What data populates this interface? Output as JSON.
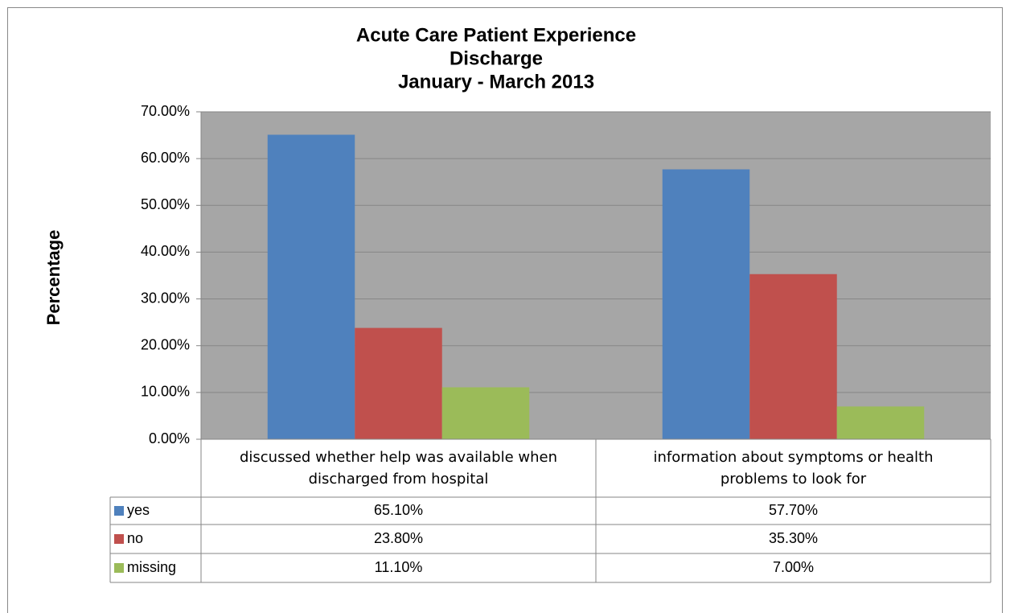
{
  "chart_data": {
    "type": "bar",
    "title": [
      "Acute Care Patient Experience",
      "Discharge",
      "January - March 2013"
    ],
    "y_label": "Percentage",
    "categories": [
      "discussed whether help was available when discharged from hospital",
      "information about symptoms or health problems to look for"
    ],
    "series": [
      {
        "name": "yes",
        "color": "#4f81bd",
        "values": [
          65.1,
          57.7
        ],
        "value_labels": [
          "65.10%",
          "57.70%"
        ]
      },
      {
        "name": "no",
        "color": "#c0504d",
        "values": [
          23.8,
          35.3
        ],
        "value_labels": [
          "23.80%",
          "35.30%"
        ]
      },
      {
        "name": "missing",
        "color": "#9bbb59",
        "values": [
          11.1,
          7.0
        ],
        "value_labels": [
          "11.10%",
          "7.00%"
        ]
      }
    ],
    "ylim": [
      0,
      70
    ],
    "yticks": [
      {
        "value": 0,
        "label": "0.00%"
      },
      {
        "value": 10,
        "label": "10.00%"
      },
      {
        "value": 20,
        "label": "20.00%"
      },
      {
        "value": 30,
        "label": "30.00%"
      },
      {
        "value": 40,
        "label": "40.00%"
      },
      {
        "value": 50,
        "label": "50.00%"
      },
      {
        "value": 60,
        "label": "60.00%"
      },
      {
        "value": 70,
        "label": "70.00%"
      }
    ],
    "grid": true,
    "plot_background": "#a6a6a6"
  }
}
